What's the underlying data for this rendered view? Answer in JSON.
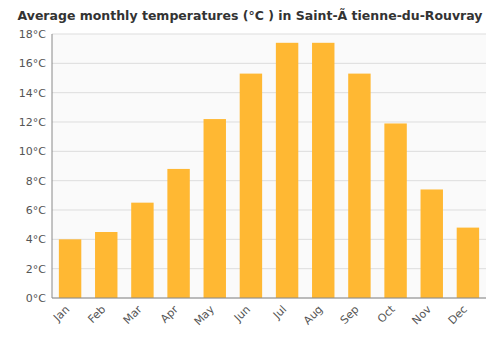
{
  "chart_data": {
    "type": "bar",
    "title": "Average monthly temperatures (°C ) in Saint-Ã tienne-du-Rouvray",
    "categories": [
      "Jan",
      "Feb",
      "Mar",
      "Apr",
      "May",
      "Jun",
      "Jul",
      "Aug",
      "Sep",
      "Oct",
      "Nov",
      "Dec"
    ],
    "values": [
      4.0,
      4.5,
      6.5,
      8.8,
      12.2,
      15.3,
      17.4,
      17.4,
      15.3,
      11.9,
      7.4,
      4.8
    ],
    "color": "#FFB833",
    "ylim": [
      0,
      18
    ],
    "yticks": [
      {
        "value": 0,
        "label": "0°C"
      },
      {
        "value": 2,
        "label": "2°C"
      },
      {
        "value": 4,
        "label": "4°C"
      },
      {
        "value": 6,
        "label": "6°C"
      },
      {
        "value": 8,
        "label": "8°C"
      },
      {
        "value": 10,
        "label": "10°C"
      },
      {
        "value": 12,
        "label": "12°C"
      },
      {
        "value": 14,
        "label": "14°C"
      },
      {
        "value": 16,
        "label": "16°C"
      },
      {
        "value": 18,
        "label": "18°C"
      }
    ],
    "grid": true
  }
}
